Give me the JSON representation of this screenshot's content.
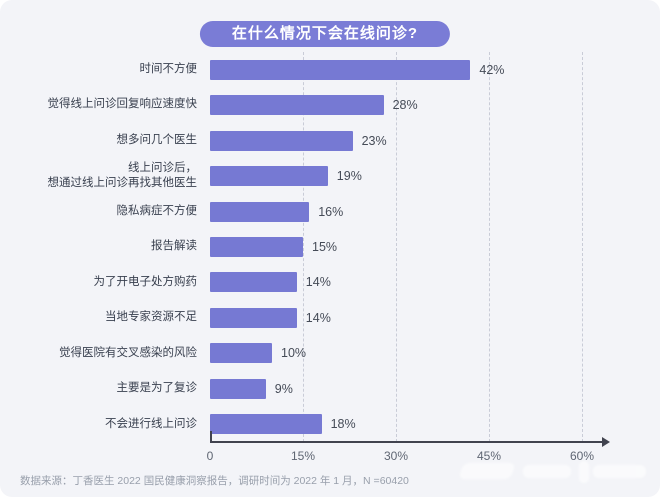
{
  "title": "在什么情况下会在线问诊?",
  "colors": {
    "background": "#f3f4f8",
    "bar": "#7679d3",
    "title_pill": "#7a7cd6",
    "axis": "#41434f",
    "gridline": "#c9ccd7",
    "label_text": "#39404f",
    "value_text": "#454b57",
    "tick_text": "#5f6673",
    "footer_text": "#989fab"
  },
  "chart_data": {
    "type": "bar",
    "orientation": "horizontal",
    "title": "在什么情况下会在线问诊?",
    "categories": [
      "时间不方便",
      "觉得线上问诊回复响应速度快",
      "想多问几个医生",
      "线上问诊后，想通过线上问诊再找其他医生",
      "隐私病症不方便",
      "报告解读",
      "为了开电子处方购药",
      "当地专家资源不足",
      "觉得医院有交叉感染的风险",
      "主要是为了复诊",
      "不会进行线上问诊"
    ],
    "values": [
      42,
      28,
      23,
      19,
      16,
      15,
      14,
      14,
      10,
      9,
      18
    ],
    "rows": [
      {
        "lines": [
          "时间不方便"
        ],
        "value": 42,
        "value_label": "42%"
      },
      {
        "lines": [
          "觉得线上问诊回复响应速度快"
        ],
        "value": 28,
        "value_label": "28%"
      },
      {
        "lines": [
          "想多问几个医生"
        ],
        "value": 23,
        "value_label": "23%"
      },
      {
        "lines": [
          "线上问诊后，",
          "想通过线上问诊再找其他医生"
        ],
        "value": 19,
        "value_label": "19%"
      },
      {
        "lines": [
          "隐私病症不方便"
        ],
        "value": 16,
        "value_label": "16%"
      },
      {
        "lines": [
          "报告解读"
        ],
        "value": 15,
        "value_label": "15%"
      },
      {
        "lines": [
          "为了开电子处方购药"
        ],
        "value": 14,
        "value_label": "14%"
      },
      {
        "lines": [
          "当地专家资源不足"
        ],
        "value": 14,
        "value_label": "14%"
      },
      {
        "lines": [
          "觉得医院有交叉感染的风险"
        ],
        "value": 10,
        "value_label": "10%"
      },
      {
        "lines": [
          "主要是为了复诊"
        ],
        "value": 9,
        "value_label": "9%"
      },
      {
        "lines": [
          "不会进行线上问诊"
        ],
        "value": 18,
        "value_label": "18%"
      }
    ],
    "x_ticks": [
      {
        "label": "0",
        "value": 0
      },
      {
        "label": "15%",
        "value": 15
      },
      {
        "label": "30%",
        "value": 30
      },
      {
        "label": "45%",
        "value": 45
      },
      {
        "label": "60%",
        "value": 60
      }
    ],
    "xlim": [
      0,
      60
    ],
    "gridline_values": [
      15,
      30,
      45,
      60
    ],
    "grid": "vertical-dashed",
    "legend": "none"
  },
  "footer": {
    "source": "数据来源：丁香医生 2022 国民健康洞察报告，调研时间为 2022 年 1 月，N =60420"
  }
}
